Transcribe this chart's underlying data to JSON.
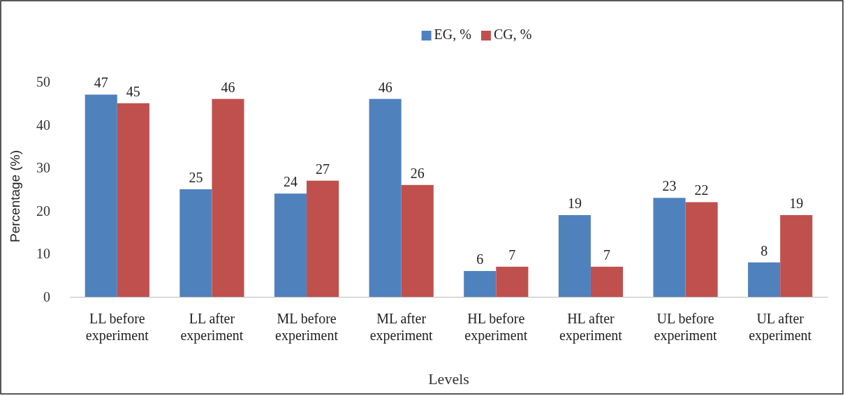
{
  "chart_data": {
    "type": "bar",
    "xlabel": "Levels",
    "ylabel": "Percentage (%)",
    "categories": [
      "LL before experiment",
      "LL after experiment",
      "ML before experiment",
      "ML after experiment",
      "HL before experiment",
      "HL after experiment",
      "UL before experiment",
      "UL after experiment"
    ],
    "series": [
      {
        "name": "EG, %",
        "color": "#4f81bd",
        "values": [
          47,
          25,
          24,
          46,
          6,
          19,
          23,
          8
        ]
      },
      {
        "name": "CG, %",
        "color": "#c0504d",
        "values": [
          45,
          46,
          27,
          26,
          7,
          7,
          22,
          19
        ]
      }
    ],
    "ylim": [
      0,
      50
    ],
    "yticks": [
      0,
      10,
      20,
      30,
      40,
      50
    ],
    "grid": false,
    "legend": "top",
    "data_labels": true
  }
}
